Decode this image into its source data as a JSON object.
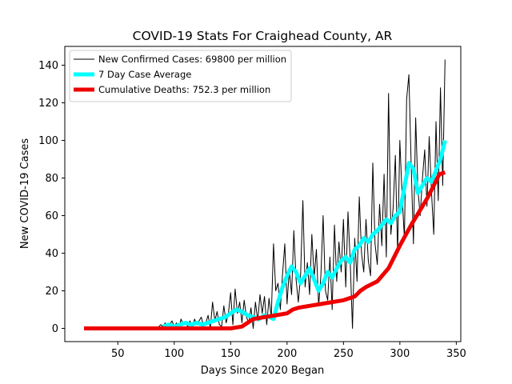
{
  "chart_data": {
    "type": "line",
    "title": "COVID-19 Stats For Craighead County, AR",
    "xlabel": "Days Since 2020 Began",
    "ylabel": "New COVID-19 Cases",
    "xlim": [
      3,
      354
    ],
    "ylim": [
      -7,
      150
    ],
    "xticks": [
      50,
      100,
      150,
      200,
      250,
      300,
      350
    ],
    "yticks": [
      0,
      20,
      40,
      60,
      80,
      100,
      120,
      140
    ],
    "grid": false,
    "legend_position": "top-left",
    "series": [
      {
        "name": "New Confirmed Cases: 69800 per million",
        "color": "#000000",
        "x": [
          85,
          88,
          90,
          92,
          94,
          96,
          98,
          100,
          102,
          104,
          106,
          108,
          110,
          112,
          114,
          116,
          118,
          120,
          122,
          124,
          126,
          128,
          130,
          132,
          134,
          136,
          138,
          140,
          142,
          144,
          146,
          148,
          150,
          152,
          154,
          156,
          158,
          160,
          162,
          164,
          166,
          168,
          170,
          172,
          174,
          176,
          178,
          180,
          182,
          184,
          186,
          188,
          190,
          192,
          194,
          196,
          198,
          200,
          202,
          204,
          206,
          208,
          210,
          212,
          214,
          216,
          218,
          220,
          222,
          224,
          226,
          228,
          230,
          232,
          234,
          236,
          238,
          240,
          242,
          244,
          246,
          248,
          250,
          252,
          254,
          256,
          258,
          260,
          262,
          264,
          266,
          268,
          270,
          272,
          274,
          276,
          278,
          280,
          282,
          284,
          286,
          288,
          290,
          292,
          294,
          296,
          298,
          300,
          302,
          304,
          306,
          308,
          310,
          312,
          314,
          316,
          318,
          320,
          322,
          324,
          326,
          328,
          330,
          332,
          334,
          336,
          338,
          340
        ],
        "y": [
          0,
          2,
          1,
          3,
          0,
          2,
          4,
          1,
          3,
          0,
          5,
          2,
          3,
          1,
          4,
          0,
          5,
          2,
          4,
          6,
          1,
          3,
          7,
          0,
          14,
          4,
          9,
          2,
          1,
          12,
          3,
          8,
          19,
          2,
          21,
          8,
          14,
          3,
          15,
          6,
          3,
          11,
          0,
          14,
          4,
          18,
          8,
          17,
          2,
          16,
          6,
          45,
          20,
          24,
          10,
          29,
          45,
          13,
          31,
          18,
          52,
          26,
          14,
          28,
          68,
          22,
          35,
          18,
          50,
          27,
          42,
          12,
          28,
          60,
          20,
          15,
          38,
          10,
          55,
          25,
          46,
          30,
          58,
          22,
          62,
          35,
          0,
          48,
          25,
          70,
          40,
          30,
          58,
          36,
          28,
          88,
          45,
          34,
          66,
          44,
          82,
          38,
          125,
          50,
          64,
          92,
          40,
          100,
          70,
          48,
          122,
          135,
          88,
          45,
          112,
          74,
          60,
          80,
          95,
          65,
          102,
          73,
          50,
          110,
          68,
          128,
          76,
          143
        ],
        "stroke_width": 1
      },
      {
        "name": "7 Day Case Average",
        "color": "#00ffff",
        "x": [
          90,
          95,
          100,
          105,
          110,
          115,
          120,
          125,
          130,
          135,
          140,
          145,
          150,
          155,
          160,
          165,
          170,
          175,
          180,
          185,
          188,
          192,
          196,
          200,
          204,
          208,
          212,
          216,
          220,
          224,
          228,
          232,
          236,
          240,
          244,
          248,
          252,
          256,
          260,
          264,
          268,
          272,
          276,
          280,
          284,
          288,
          292,
          296,
          300,
          304,
          308,
          312,
          316,
          320,
          324,
          328,
          332,
          336,
          340
        ],
        "y": [
          1,
          2,
          1,
          2,
          3,
          2,
          3,
          2,
          3,
          4,
          5,
          6,
          8,
          10,
          9,
          7,
          6,
          5,
          7,
          6,
          5,
          14,
          22,
          28,
          33,
          30,
          24,
          28,
          32,
          26,
          20,
          24,
          30,
          27,
          32,
          36,
          38,
          35,
          42,
          44,
          48,
          46,
          50,
          52,
          55,
          58,
          56,
          60,
          62,
          75,
          88,
          85,
          72,
          76,
          80,
          78,
          84,
          90,
          100
        ],
        "stroke_width": 5
      },
      {
        "name": "Cumulative Deaths: 752.3 per million",
        "color": "#ee0000",
        "x": [
          20,
          40,
          60,
          80,
          100,
          120,
          140,
          150,
          160,
          165,
          170,
          180,
          190,
          200,
          205,
          210,
          220,
          230,
          240,
          250,
          260,
          265,
          270,
          280,
          290,
          300,
          310,
          320,
          325,
          330,
          335,
          340
        ],
        "y": [
          0,
          0,
          0,
          0,
          0,
          0,
          0,
          0,
          1,
          3,
          5,
          6,
          7,
          8,
          10,
          11,
          12,
          13,
          14,
          15,
          17,
          20,
          22,
          25,
          32,
          44,
          55,
          65,
          70,
          76,
          82,
          83
        ],
        "stroke_width": 5
      }
    ]
  }
}
